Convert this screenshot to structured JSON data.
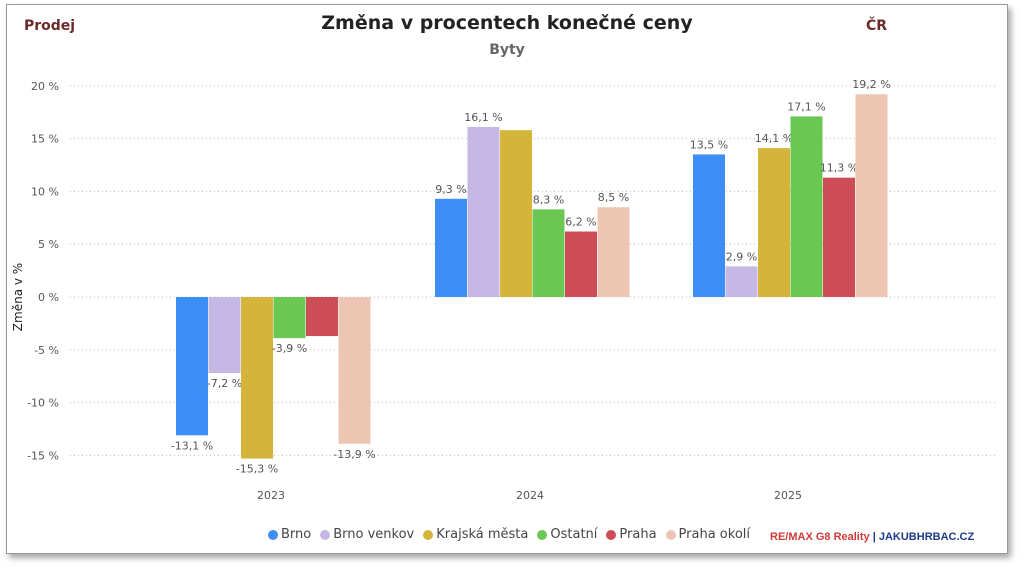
{
  "header": {
    "left_label": "Prodej",
    "title": "Změna v procentech konečné ceny",
    "subtitle": "Byty",
    "right_label": "ČR"
  },
  "brand": {
    "part1": "RE/",
    "part2": "MAX G8 Reality",
    "sep": " | ",
    "part3": "JAKUBHRBAC.CZ"
  },
  "chart_data": {
    "type": "bar",
    "categories": [
      "2023",
      "2024",
      "2025"
    ],
    "ylabel": "Změna v %",
    "ylim": [
      -15,
      20
    ],
    "yticks": [
      20,
      15,
      10,
      5,
      0,
      -5,
      -10,
      -15
    ],
    "ytick_labels": [
      "20 %",
      "15 %",
      "10 %",
      "5 %",
      "0 %",
      "-5 %",
      "-10 %",
      "-15 %"
    ],
    "grid": true,
    "legend_position": "bottom",
    "series": [
      {
        "name": "Brno",
        "color": "#3d8ef5",
        "values": [
          -13.1,
          9.3,
          13.5
        ],
        "labels": [
          "-13,1 %",
          "9,3 %",
          "13,5 %"
        ]
      },
      {
        "name": "Brno venkov",
        "color": "#c5b8e4",
        "values": [
          -7.2,
          16.1,
          2.9
        ],
        "labels": [
          "-7,2 %",
          "16,1 %",
          "2,9 %"
        ]
      },
      {
        "name": "Krajská města",
        "color": "#d4b43a",
        "values": [
          -15.3,
          15.8,
          14.1
        ],
        "labels": [
          "-15,3 %",
          "",
          "14,1 %"
        ]
      },
      {
        "name": "Ostatní",
        "color": "#6ac752",
        "values": [
          -3.9,
          8.3,
          17.1
        ],
        "labels": [
          "-3,9 %",
          "8,3 %",
          "17,1 %"
        ]
      },
      {
        "name": "Praha",
        "color": "#cc4d55",
        "values": [
          -3.7,
          6.2,
          11.3
        ],
        "labels": [
          "",
          "6,2 %",
          "11,3 %"
        ]
      },
      {
        "name": "Praha okolí",
        "color": "#ecc6b3",
        "values": [
          -13.9,
          8.5,
          19.2
        ],
        "labels": [
          "-13,9 %",
          "8,5 %",
          "19,2 %"
        ]
      }
    ]
  }
}
